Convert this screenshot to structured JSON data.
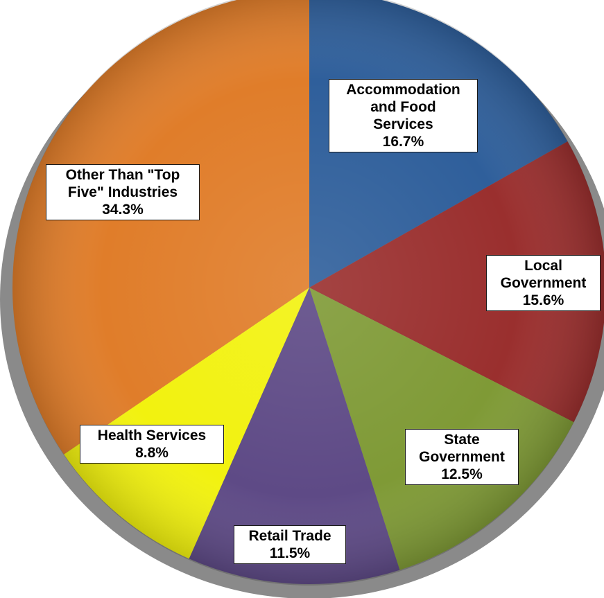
{
  "chart_data": {
    "type": "pie",
    "slices": [
      {
        "label": "Accommodation\nand Food\nServices",
        "value": 16.7,
        "pct_text": "16.7%",
        "color": "#2f5f9b"
      },
      {
        "label": "Local\nGovernment",
        "value": 15.6,
        "pct_text": "15.6%",
        "color": "#9a2f2e"
      },
      {
        "label": "State\nGovernment",
        "value": 12.5,
        "pct_text": "12.5%",
        "color": "#7f9a36"
      },
      {
        "label": "Retail Trade",
        "value": 11.5,
        "pct_text": "11.5%",
        "color": "#5e4a86"
      },
      {
        "label": "Health Services",
        "value": 8.8,
        "pct_text": "8.8%",
        "color": "#f2f20f"
      },
      {
        "label": "Other Than \"Top\nFive\" Industries",
        "value": 34.3,
        "pct_text": "34.3%",
        "color": "#e07d2a"
      }
    ],
    "start_angle": "12 o'clock",
    "direction": "clockwise",
    "legend": "none"
  }
}
